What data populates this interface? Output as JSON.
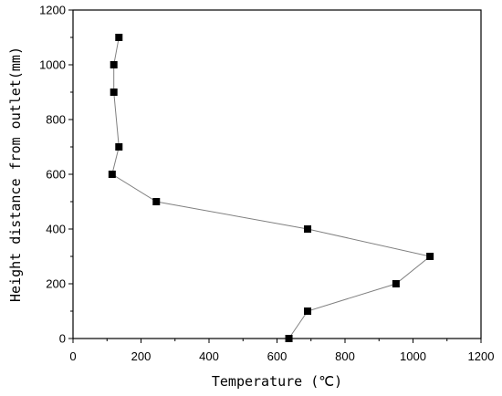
{
  "chart_data": {
    "type": "line",
    "title": "",
    "xlabel": "Temperature (℃)",
    "ylabel": "Height distance from outlet(mm)",
    "xlim": [
      0,
      1200
    ],
    "ylim": [
      0,
      1200
    ],
    "xticks": [
      0,
      200,
      400,
      600,
      800,
      1000,
      1200
    ],
    "yticks": [
      0,
      200,
      400,
      600,
      800,
      1000,
      1200
    ],
    "grid": false,
    "legend": "none",
    "marker": "square",
    "line_color": "#808080",
    "marker_color": "#000000",
    "series": [
      {
        "x": [
          635,
          690,
          950,
          1050,
          690,
          245,
          115,
          135,
          120,
          120,
          135
        ],
        "y": [
          0,
          100,
          200,
          300,
          400,
          500,
          600,
          700,
          900,
          1000,
          1100
        ]
      }
    ]
  }
}
